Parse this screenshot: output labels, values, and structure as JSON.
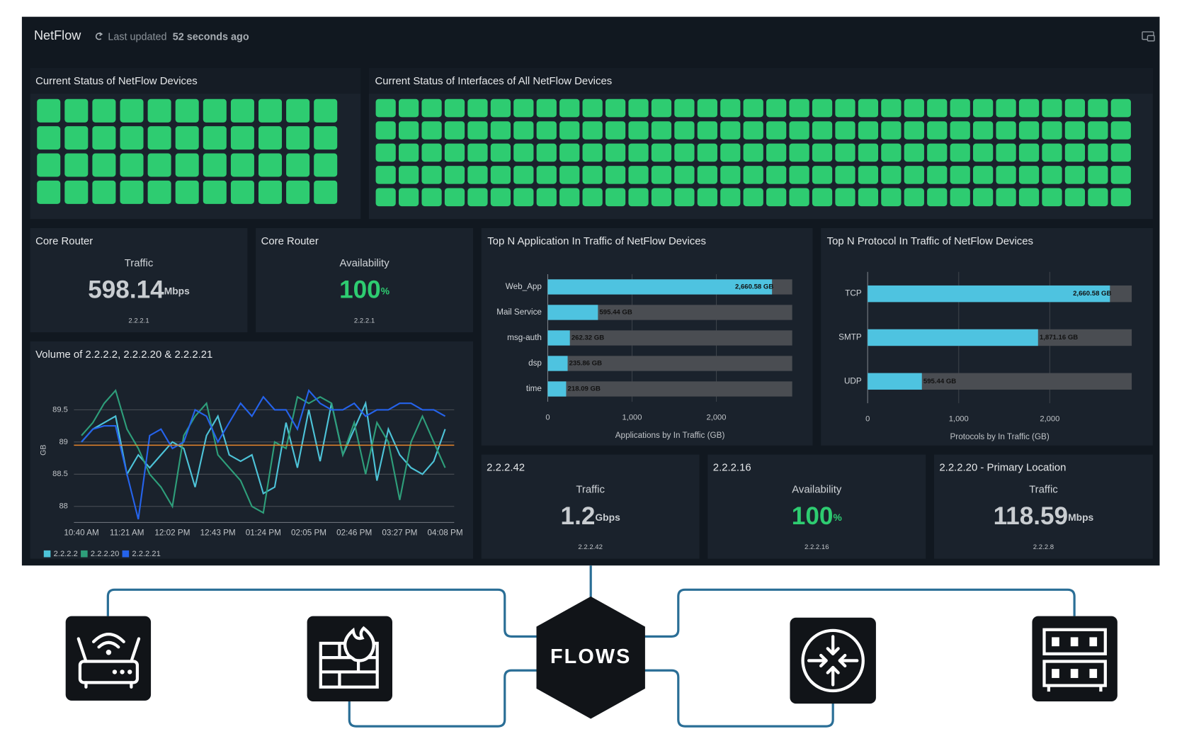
{
  "header": {
    "title": "NetFlow",
    "updated_prefix": "Last updated",
    "updated_value": "52 seconds ago"
  },
  "panels": {
    "device_status": {
      "title": "Current Status of NetFlow Devices"
    },
    "interface_status": {
      "title": "Current Status of Interfaces of All NetFlow Devices"
    }
  },
  "stats": [
    {
      "title": "Core Router",
      "label": "Traffic",
      "value": "598.14",
      "unit": "Mbps",
      "footer": "2.2.2.1",
      "color": "#c9cdd1"
    },
    {
      "title": "Core Router",
      "label": "Availability",
      "value": "100",
      "unit": "%",
      "footer": "2.2.2.1",
      "color": "#2ecc71"
    },
    {
      "title": "2.2.2.42",
      "label": "Traffic",
      "value": "1.2",
      "unit": "Gbps",
      "footer": "2.2.2.42",
      "color": "#c9cdd1"
    },
    {
      "title": "2.2.2.16",
      "label": "Availability",
      "value": "100",
      "unit": "%",
      "footer": "2.2.2.16",
      "color": "#2ecc71"
    },
    {
      "title": "2.2.2.20 - Primary Location",
      "label": "Traffic",
      "value": "118.59",
      "unit": "Mbps",
      "footer": "2.2.2.8",
      "color": "#c9cdd1"
    }
  ],
  "chart_data": [
    {
      "type": "line",
      "title": "Volume of 2.2.2.2, 2.2.2.20 & 2.2.2.21",
      "y_label": "GB",
      "categories": [
        "10:40 AM",
        null,
        null,
        null,
        "11:21 AM",
        null,
        null,
        null,
        "12:02 PM",
        null,
        null,
        null,
        "12:43 PM",
        null,
        null,
        null,
        "01:24 PM",
        null,
        null,
        null,
        "02:05 PM",
        null,
        null,
        null,
        "02:46 PM",
        null,
        null,
        null,
        "03:27 PM",
        null,
        null,
        null,
        "04:08 PM"
      ],
      "ylim": [
        87.75,
        90
      ],
      "yticks": [
        88,
        88.5,
        89,
        89.5
      ],
      "threshold": 88.95,
      "threshold_color": "#e8862a",
      "grid": true,
      "series": [
        {
          "name": "2.2.2.2",
          "color": "#4dc3d8",
          "values": [
            89.0,
            89.2,
            89.3,
            89.4,
            88.5,
            88.8,
            88.6,
            88.8,
            89.0,
            88.9,
            88.3,
            89.1,
            89.4,
            88.8,
            88.7,
            88.8,
            88.2,
            88.3,
            89.3,
            88.6,
            89.5,
            88.7,
            89.6,
            88.8,
            89.2,
            89.6,
            88.4,
            89.2,
            88.8,
            88.6,
            88.5,
            88.7,
            89.2
          ]
        },
        {
          "name": "2.2.2.20",
          "color": "#2e9e7a",
          "values": [
            89.1,
            89.3,
            89.6,
            89.8,
            89.2,
            88.9,
            88.5,
            88.3,
            88.0,
            89.1,
            89.4,
            89.6,
            88.8,
            88.6,
            88.4,
            88.0,
            87.9,
            89.0,
            88.9,
            89.7,
            89.6,
            89.7,
            89.6,
            88.8,
            89.3,
            88.5,
            89.3,
            89.0,
            88.1,
            89.0,
            89.4,
            89.0,
            88.6
          ]
        },
        {
          "name": "2.2.2.21",
          "color": "#2563eb",
          "values": [
            89.0,
            89.2,
            89.25,
            89.25,
            88.5,
            87.8,
            89.1,
            89.2,
            88.9,
            89.0,
            89.5,
            89.4,
            89.0,
            89.3,
            89.6,
            89.4,
            89.7,
            89.5,
            89.5,
            89.2,
            89.8,
            89.6,
            89.5,
            89.5,
            89.6,
            89.4,
            89.5,
            89.5,
            89.6,
            89.6,
            89.5,
            89.5,
            89.4
          ]
        }
      ]
    },
    {
      "type": "hbar",
      "title": "Top N Application In Traffic of NetFlow Devices",
      "x_label": "Applications by In Traffic (GB)",
      "categories": [
        "Web_App",
        "Mail Service",
        "msg-auth",
        "dsp",
        "time"
      ],
      "values": [
        2660.58,
        595.44,
        262.32,
        235.86,
        218.09
      ],
      "value_labels": [
        "2,660.58 GB",
        "595.44 GB",
        "262.32 GB",
        "235.86 GB",
        "218.09 GB"
      ],
      "color": "#4ec3e0",
      "xlim": [
        0,
        2900
      ],
      "xticks": [
        0,
        {
          "value": 1000,
          "label": "1,000"
        },
        {
          "value": 2000,
          "label": "2,000"
        }
      ]
    },
    {
      "type": "hbar",
      "title": "Top N Protocol In Traffic of NetFlow Devices",
      "x_label": "Protocols by In Traffic (GB)",
      "categories": [
        "TCP",
        "SMTP",
        "UDP"
      ],
      "values": [
        2660.58,
        1871.16,
        595.44
      ],
      "value_labels": [
        "2,660.58 GB",
        "1,871.16 GB",
        "595.44 GB"
      ],
      "color": "#4ec3e0",
      "xlim": [
        0,
        2900
      ],
      "xticks": [
        0,
        {
          "value": 1000,
          "label": "1,000"
        },
        {
          "value": 2000,
          "label": "2,000"
        }
      ]
    }
  ],
  "diagram": {
    "center": "FLOWS"
  }
}
